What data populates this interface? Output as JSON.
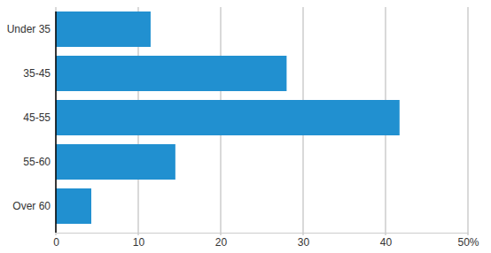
{
  "chart_data": {
    "type": "bar",
    "orientation": "horizontal",
    "categories": [
      "Under 35",
      "35-45",
      "45-55",
      "55-60",
      "Over 60"
    ],
    "values": [
      11.5,
      28,
      41.7,
      14.5,
      4.3
    ],
    "color": "#2190d0",
    "xlim": [
      0,
      50
    ],
    "xticks": [
      0,
      10,
      20,
      30,
      40,
      {
        "value": 50,
        "label": "50%"
      }
    ],
    "grid": true
  }
}
